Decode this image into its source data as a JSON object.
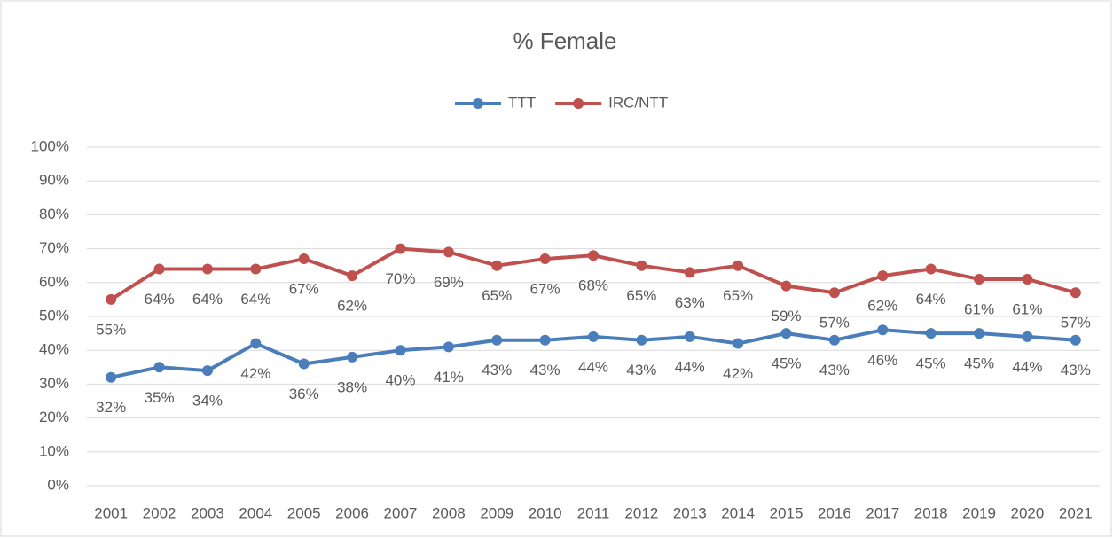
{
  "chart_data": {
    "type": "line",
    "title": "% Female",
    "categories": [
      "2001",
      "2002",
      "2003",
      "2004",
      "2005",
      "2006",
      "2007",
      "2008",
      "2009",
      "2010",
      "2011",
      "2012",
      "2013",
      "2014",
      "2015",
      "2016",
      "2017",
      "2018",
      "2019",
      "2020",
      "2021"
    ],
    "series": [
      {
        "name": "TTT",
        "color": "#4a7ebb",
        "values": [
          32,
          35,
          34,
          42,
          36,
          38,
          40,
          41,
          43,
          43,
          44,
          43,
          44,
          42,
          45,
          43,
          46,
          45,
          45,
          44,
          43
        ],
        "value_labels": [
          "32%",
          "35%",
          "34%",
          "42%",
          "36%",
          "38%",
          "40%",
          "41%",
          "43%",
          "43%",
          "44%",
          "43%",
          "44%",
          "42%",
          "45%",
          "43%",
          "46%",
          "45%",
          "45%",
          "44%",
          "43%"
        ]
      },
      {
        "name": "IRC/NTT",
        "color": "#c0504d",
        "values": [
          55,
          64,
          64,
          64,
          67,
          62,
          70,
          69,
          65,
          67,
          68,
          65,
          63,
          65,
          59,
          57,
          62,
          64,
          61,
          61,
          57
        ],
        "value_labels": [
          "55%",
          "64%",
          "64%",
          "64%",
          "67%",
          "62%",
          "70%",
          "69%",
          "65%",
          "67%",
          "68%",
          "65%",
          "63%",
          "65%",
          "59%",
          "57%",
          "62%",
          "64%",
          "61%",
          "61%",
          "57%"
        ]
      }
    ],
    "ylim": [
      0,
      100
    ],
    "yticks": [
      {
        "value": 0,
        "label": "0%"
      },
      {
        "value": 10,
        "label": "10%"
      },
      {
        "value": 20,
        "label": "20%"
      },
      {
        "value": 30,
        "label": "30%"
      },
      {
        "value": 40,
        "label": "40%"
      },
      {
        "value": 50,
        "label": "50%"
      },
      {
        "value": 60,
        "label": "60%"
      },
      {
        "value": 70,
        "label": "70%"
      },
      {
        "value": 80,
        "label": "80%"
      },
      {
        "value": 90,
        "label": "90%"
      },
      {
        "value": 100,
        "label": "100%"
      }
    ],
    "grid": true,
    "legend": "top"
  }
}
